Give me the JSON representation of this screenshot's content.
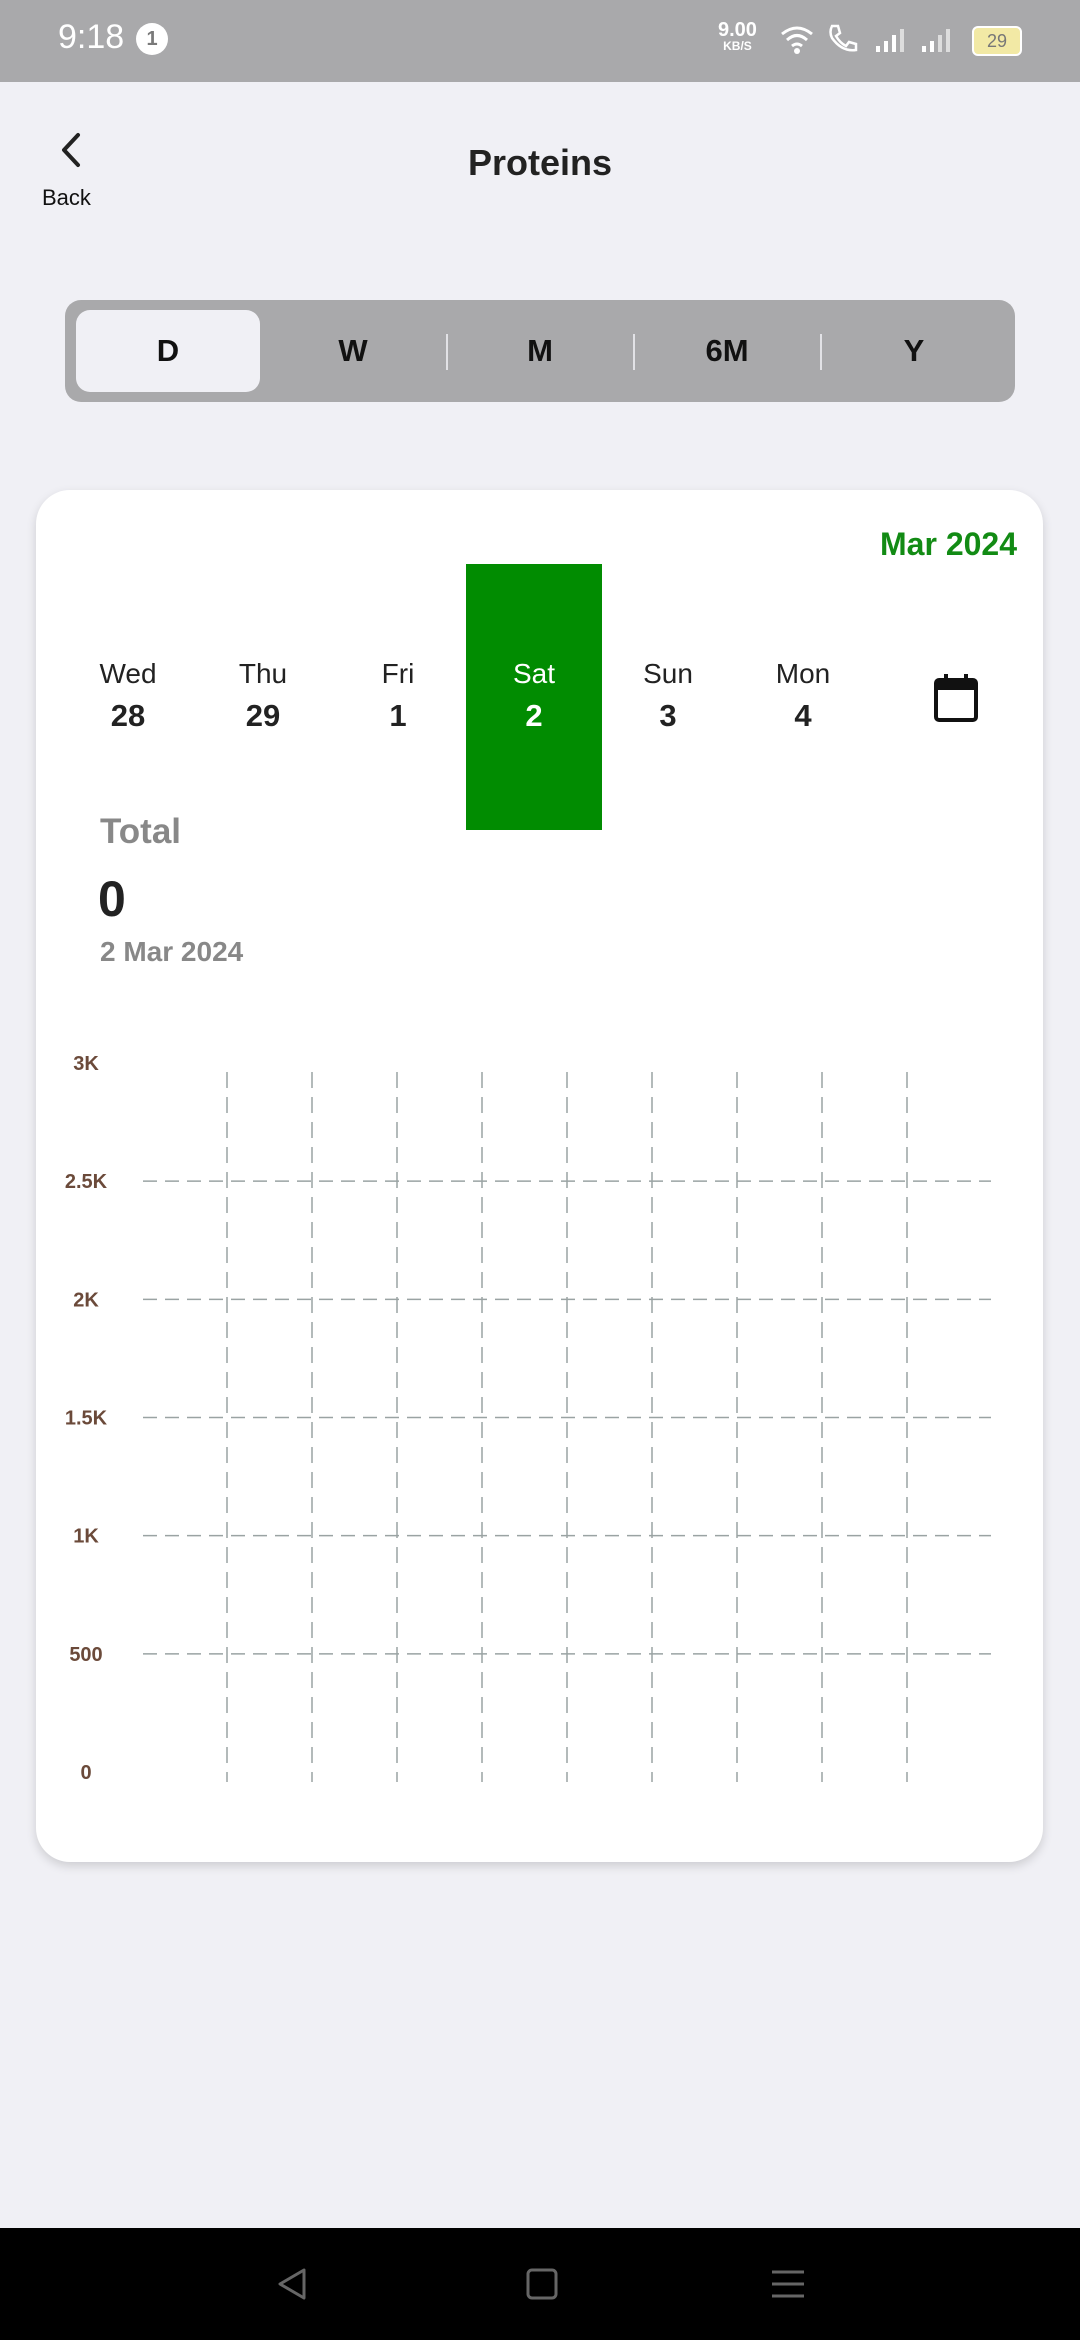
{
  "status_bar": {
    "time": "9:18",
    "notification_count": "1",
    "net_speed": "9.00",
    "net_unit": "KB/S",
    "battery": "29"
  },
  "header": {
    "back_label": "Back",
    "title": "Proteins"
  },
  "range_tabs": [
    {
      "label": "D",
      "active": true
    },
    {
      "label": "W",
      "active": false
    },
    {
      "label": "M",
      "active": false
    },
    {
      "label": "6M",
      "active": false
    },
    {
      "label": "Y",
      "active": false
    }
  ],
  "calendar": {
    "month_label": "Mar 2024",
    "days": [
      {
        "name": "Wed",
        "date": "28"
      },
      {
        "name": "Thu",
        "date": "29"
      },
      {
        "name": "Fri",
        "date": "1"
      },
      {
        "name": "Sat",
        "date": "2",
        "selected": true
      },
      {
        "name": "Sun",
        "date": "3"
      },
      {
        "name": "Mon",
        "date": "4"
      }
    ],
    "accent_color": "#018c01"
  },
  "summary": {
    "label": "Total",
    "value": "0",
    "date": "2 Mar 2024"
  },
  "chart_data": {
    "type": "bar",
    "y_ticks": [
      "3K",
      "2.5K",
      "2K",
      "1.5K",
      "1K",
      "500",
      "0"
    ],
    "ylim": [
      0,
      3000
    ],
    "grid": true,
    "values": []
  }
}
